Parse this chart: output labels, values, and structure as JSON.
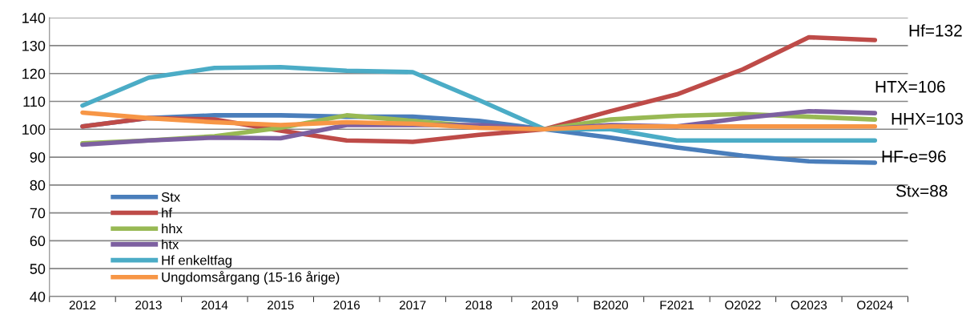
{
  "chart_data": {
    "type": "line",
    "categories": [
      "2012",
      "2013",
      "2014",
      "2015",
      "2016",
      "2017",
      "2018",
      "2019",
      "B2020",
      "F2021",
      "O2022",
      "O2023",
      "O2024"
    ],
    "series": [
      {
        "name": "Stx",
        "color": "#4a7ebb",
        "values": [
          101,
          104,
          105,
          105,
          104.5,
          104.5,
          103,
          100,
          97,
          93.5,
          90.5,
          88.5,
          88
        ]
      },
      {
        "name": "hf",
        "color": "#be4b48",
        "values": [
          101,
          104,
          103.5,
          99.5,
          96,
          95.5,
          98,
          100,
          106.5,
          112.5,
          121.5,
          133,
          132
        ]
      },
      {
        "name": "hhx",
        "color": "#98b954",
        "values": [
          95,
          96,
          97.5,
          100.5,
          105,
          103,
          101,
          100,
          103.5,
          104.8,
          105.5,
          104.5,
          103.5
        ]
      },
      {
        "name": "htx",
        "color": "#7d60a0",
        "values": [
          94.5,
          96,
          97,
          96.8,
          101.5,
          101.5,
          101.5,
          100,
          101.5,
          101,
          104,
          106.5,
          105.8
        ]
      },
      {
        "name": "Hf enkeltfag",
        "color": "#4bacc6",
        "values": [
          108.5,
          118.5,
          122,
          122.3,
          121,
          120.5,
          110.5,
          100,
          100,
          96,
          96,
          96,
          96
        ]
      },
      {
        "name": "Ungdomsårgang (15-16 årige)",
        "color": "#f79646",
        "values": [
          106,
          104,
          102.5,
          101.5,
          102.5,
          102,
          100.5,
          100,
          101,
          101,
          101,
          101,
          101
        ]
      }
    ],
    "ylim": [
      40,
      140
    ],
    "yticks": [
      40,
      50,
      60,
      70,
      80,
      90,
      100,
      110,
      120,
      130,
      140
    ],
    "grid": "y",
    "legend": "bottom left",
    "marker": "none",
    "line_style": "solid",
    "annotations": [
      "Hf=132",
      "HTX=106",
      "HHX=103",
      "HF-e=96",
      "Stx=88"
    ]
  }
}
